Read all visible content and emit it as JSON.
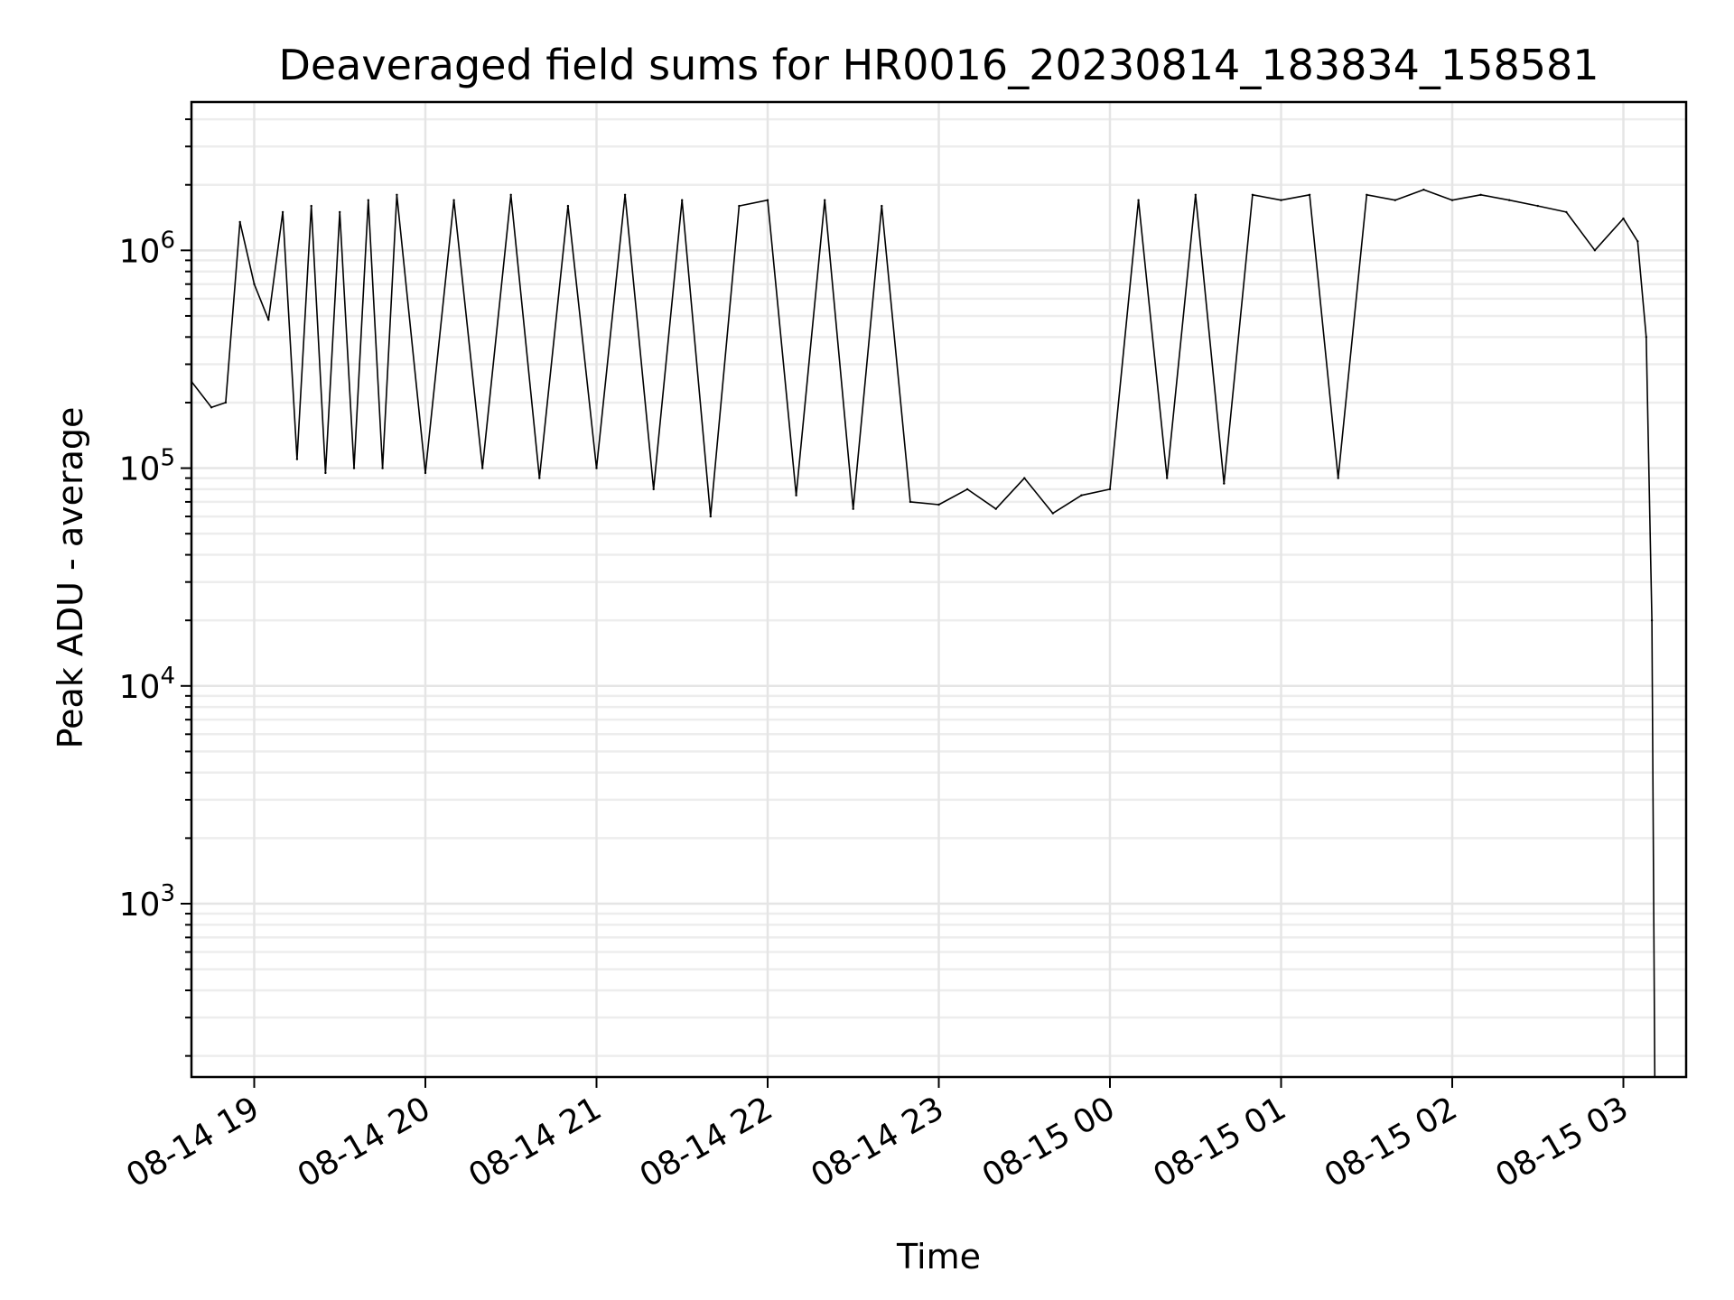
{
  "chart_data": {
    "type": "line",
    "title": "Deaveraged field sums for HR0016_20230814_183834_158581",
    "xlabel": "Time",
    "ylabel": "Peak ADU - average",
    "yscale": "log",
    "grid": true,
    "ylim": [
      160,
      4800000
    ],
    "xlim": [
      "2023-08-14 18:38",
      "2023-08-15 03:22"
    ],
    "x_tick_labels": [
      "08-14 19",
      "08-14 20",
      "08-14 21",
      "08-14 22",
      "08-14 23",
      "08-15 00",
      "08-15 01",
      "08-15 02",
      "08-15 03"
    ],
    "x_tick_times": [
      "2023-08-14 19:00",
      "2023-08-14 20:00",
      "2023-08-14 21:00",
      "2023-08-14 22:00",
      "2023-08-14 23:00",
      "2023-08-15 00:00",
      "2023-08-15 01:00",
      "2023-08-15 02:00",
      "2023-08-15 03:00"
    ],
    "y_ticks": [
      {
        "value": 1000,
        "base": "10",
        "exp": "3"
      },
      {
        "value": 10000,
        "base": "10",
        "exp": "4"
      },
      {
        "value": 100000,
        "base": "10",
        "exp": "5"
      },
      {
        "value": 1000000,
        "base": "10",
        "exp": "6"
      }
    ],
    "series": [
      {
        "color": "#000000",
        "x": [
          "2023-08-14 18:38",
          "2023-08-14 18:45",
          "2023-08-14 18:50",
          "2023-08-14 18:55",
          "2023-08-14 19:00",
          "2023-08-14 19:05",
          "2023-08-14 19:10",
          "2023-08-14 19:15",
          "2023-08-14 19:20",
          "2023-08-14 19:25",
          "2023-08-14 19:30",
          "2023-08-14 19:35",
          "2023-08-14 19:40",
          "2023-08-14 19:45",
          "2023-08-14 19:50",
          "2023-08-14 20:00",
          "2023-08-14 20:10",
          "2023-08-14 20:20",
          "2023-08-14 20:30",
          "2023-08-14 20:40",
          "2023-08-14 20:50",
          "2023-08-14 21:00",
          "2023-08-14 21:10",
          "2023-08-14 21:20",
          "2023-08-14 21:30",
          "2023-08-14 21:40",
          "2023-08-14 21:50",
          "2023-08-14 22:00",
          "2023-08-14 22:10",
          "2023-08-14 22:20",
          "2023-08-14 22:30",
          "2023-08-14 22:40",
          "2023-08-14 22:50",
          "2023-08-14 23:00",
          "2023-08-14 23:10",
          "2023-08-14 23:20",
          "2023-08-14 23:30",
          "2023-08-14 23:40",
          "2023-08-14 23:50",
          "2023-08-15 00:00",
          "2023-08-15 00:10",
          "2023-08-15 00:20",
          "2023-08-15 00:30",
          "2023-08-15 00:40",
          "2023-08-15 00:50",
          "2023-08-15 01:00",
          "2023-08-15 01:10",
          "2023-08-15 01:20",
          "2023-08-15 01:30",
          "2023-08-15 01:40",
          "2023-08-15 01:50",
          "2023-08-15 02:00",
          "2023-08-15 02:10",
          "2023-08-15 02:20",
          "2023-08-15 02:30",
          "2023-08-15 02:40",
          "2023-08-15 02:50",
          "2023-08-15 03:00",
          "2023-08-15 03:05",
          "2023-08-15 03:08",
          "2023-08-15 03:10",
          "2023-08-15 03:11"
        ],
        "y": [
          250000,
          190000,
          200000,
          1350000,
          700000,
          480000,
          1500000,
          110000,
          1600000,
          95000,
          1500000,
          100000,
          1700000,
          100000,
          1800000,
          95000,
          1700000,
          100000,
          1800000,
          90000,
          1600000,
          100000,
          1800000,
          80000,
          1700000,
          60000,
          1600000,
          1700000,
          75000,
          1700000,
          65000,
          1600000,
          70000,
          68000,
          80000,
          65000,
          90000,
          62000,
          75000,
          80000,
          1700000,
          90000,
          1800000,
          85000,
          1800000,
          1700000,
          1800000,
          90000,
          1800000,
          1700000,
          1900000,
          1700000,
          1800000,
          1700000,
          1600000,
          1500000,
          1000000,
          1400000,
          1100000,
          400000,
          20000,
          160
        ]
      }
    ]
  }
}
